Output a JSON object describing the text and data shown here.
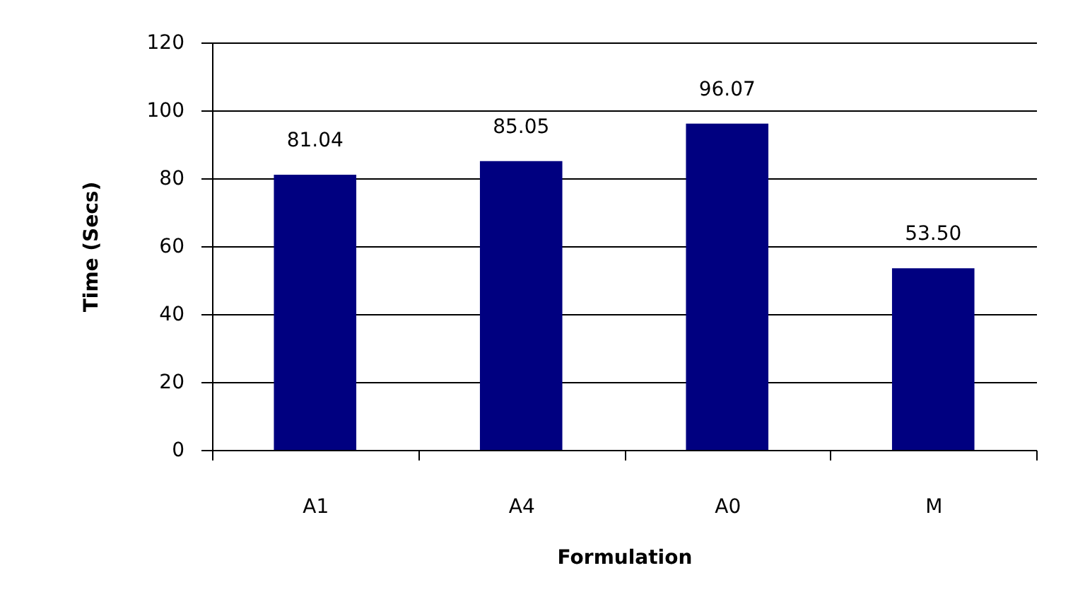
{
  "chart_data": {
    "type": "bar",
    "categories": [
      "A1",
      "A4",
      "A0",
      "M"
    ],
    "values": [
      81.04,
      85.05,
      96.07,
      53.5
    ],
    "value_labels": [
      "81.04",
      "85.05",
      "96.07",
      "53.50"
    ],
    "color": "#000080",
    "xlabel": "Formulation",
    "ylabel": "Time (Secs)",
    "ylim": [
      0,
      120
    ],
    "yticks": [
      0,
      20,
      40,
      60,
      80,
      100,
      120
    ],
    "grid": "y"
  }
}
